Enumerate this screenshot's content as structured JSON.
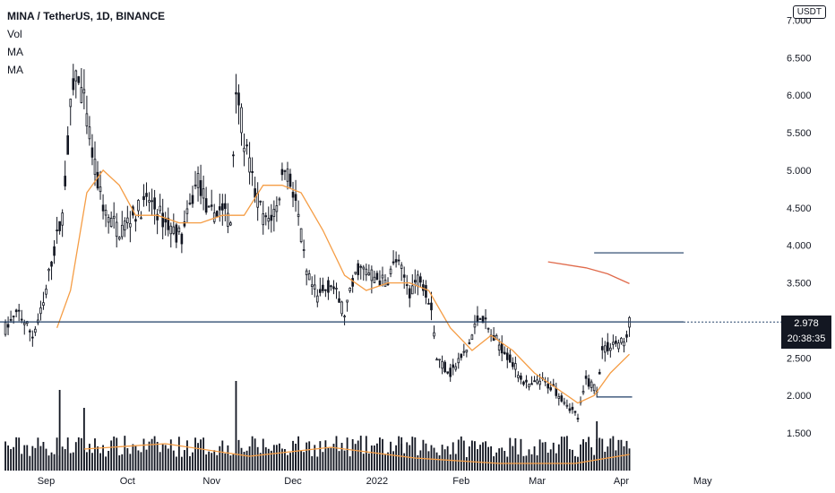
{
  "legend": {
    "symbol": "MINA / TetherUS, 1D, BINANCE",
    "lines": [
      "Vol",
      "MA",
      "MA"
    ]
  },
  "currency": "USDT",
  "price_tag": {
    "price": "2.978",
    "countdown": "20:38:35"
  },
  "colors": {
    "candle": "#131722",
    "ma_short": "#f59d45",
    "ma_long": "#e06a4b",
    "hline": "#1f3e66",
    "volume": "#131722"
  },
  "chart_data": {
    "type": "candlestick",
    "y_ticks": [
      "7.000",
      "6.500",
      "6.000",
      "5.500",
      "5.000",
      "4.500",
      "4.000",
      "3.500",
      "3.000",
      "2.500",
      "2.000",
      "1.500"
    ],
    "y_range": [
      1.0,
      7.1
    ],
    "x_ticks": [
      "Sep",
      "Oct",
      "Nov",
      "Dec",
      "2022",
      "Feb",
      "Mar",
      "Apr",
      "May"
    ],
    "x_range": [
      "2021-08-15",
      "2022-05-26"
    ],
    "price_series": [
      [
        "2021-08-17",
        2.9
      ],
      [
        "2021-08-22",
        3.1
      ],
      [
        "2021-08-27",
        2.8
      ],
      [
        "2021-08-31",
        3.2
      ],
      [
        "2021-09-03",
        3.8
      ],
      [
        "2021-09-07",
        4.4
      ],
      [
        "2021-09-10",
        5.8
      ],
      [
        "2021-09-12",
        6.3
      ],
      [
        "2021-09-15",
        5.9
      ],
      [
        "2021-09-19",
        5.0
      ],
      [
        "2021-09-23",
        4.4
      ],
      [
        "2021-09-28",
        4.2
      ],
      [
        "2021-10-03",
        4.4
      ],
      [
        "2021-10-09",
        4.6
      ],
      [
        "2021-10-15",
        4.3
      ],
      [
        "2021-10-21",
        4.1
      ],
      [
        "2021-10-27",
        4.9
      ],
      [
        "2021-10-31",
        4.4
      ],
      [
        "2021-11-05",
        4.5
      ],
      [
        "2021-11-08",
        4.3
      ],
      [
        "2021-11-10",
        6.2
      ],
      [
        "2021-11-13",
        5.4
      ],
      [
        "2021-11-17",
        4.7
      ],
      [
        "2021-11-21",
        4.3
      ],
      [
        "2021-11-25",
        4.5
      ],
      [
        "2021-11-28",
        5.1
      ],
      [
        "2021-12-02",
        4.6
      ],
      [
        "2021-12-06",
        3.6
      ],
      [
        "2021-12-10",
        3.3
      ],
      [
        "2021-12-15",
        3.5
      ],
      [
        "2021-12-20",
        3.1
      ],
      [
        "2021-12-25",
        3.7
      ],
      [
        "2021-12-30",
        3.6
      ],
      [
        "2022-01-04",
        3.5
      ],
      [
        "2022-01-08",
        3.8
      ],
      [
        "2022-01-13",
        3.4
      ],
      [
        "2022-01-17",
        3.6
      ],
      [
        "2022-01-21",
        3.2
      ],
      [
        "2022-01-23",
        2.5
      ],
      [
        "2022-01-28",
        2.3
      ],
      [
        "2022-02-03",
        2.6
      ],
      [
        "2022-02-08",
        3.1
      ],
      [
        "2022-02-12",
        2.8
      ],
      [
        "2022-02-17",
        2.6
      ],
      [
        "2022-02-22",
        2.3
      ],
      [
        "2022-02-26",
        2.1
      ],
      [
        "2022-03-02",
        2.2
      ],
      [
        "2022-03-07",
        2.1
      ],
      [
        "2022-03-12",
        1.9
      ],
      [
        "2022-03-16",
        1.7
      ],
      [
        "2022-03-19",
        2.2
      ],
      [
        "2022-03-23",
        2.1
      ],
      [
        "2022-03-25",
        2.6
      ],
      [
        "2022-03-29",
        2.7
      ],
      [
        "2022-04-02",
        2.7
      ],
      [
        "2022-04-04",
        2.98
      ]
    ],
    "ma_short": [
      [
        "2021-09-05",
        2.9
      ],
      [
        "2021-09-10",
        3.4
      ],
      [
        "2021-09-16",
        4.7
      ],
      [
        "2021-09-22",
        5.0
      ],
      [
        "2021-09-28",
        4.8
      ],
      [
        "2021-10-04",
        4.4
      ],
      [
        "2021-10-12",
        4.4
      ],
      [
        "2021-10-20",
        4.3
      ],
      [
        "2021-10-28",
        4.3
      ],
      [
        "2021-11-05",
        4.4
      ],
      [
        "2021-11-13",
        4.4
      ],
      [
        "2021-11-20",
        4.8
      ],
      [
        "2021-11-27",
        4.8
      ],
      [
        "2021-12-04",
        4.7
      ],
      [
        "2021-12-12",
        4.2
      ],
      [
        "2021-12-20",
        3.6
      ],
      [
        "2021-12-28",
        3.4
      ],
      [
        "2022-01-05",
        3.5
      ],
      [
        "2022-01-13",
        3.5
      ],
      [
        "2022-01-20",
        3.4
      ],
      [
        "2022-01-28",
        2.9
      ],
      [
        "2022-02-05",
        2.6
      ],
      [
        "2022-02-12",
        2.8
      ],
      [
        "2022-02-20",
        2.6
      ],
      [
        "2022-02-28",
        2.3
      ],
      [
        "2022-03-08",
        2.1
      ],
      [
        "2022-03-16",
        1.9
      ],
      [
        "2022-03-22",
        2.0
      ],
      [
        "2022-03-28",
        2.3
      ],
      [
        "2022-04-04",
        2.55
      ]
    ],
    "ma_long": [
      [
        "2022-03-05",
        3.78
      ],
      [
        "2022-03-19",
        3.7
      ],
      [
        "2022-03-27",
        3.62
      ],
      [
        "2022-04-04",
        3.49
      ]
    ],
    "horizontal_lines": [
      {
        "price": 2.98,
        "from": "2021-08-15",
        "to": "2022-04-24"
      },
      {
        "price": 3.9,
        "from": "2022-03-22",
        "to": "2022-04-24"
      },
      {
        "price": 1.98,
        "from": "2022-03-23",
        "to": "2022-04-05"
      }
    ],
    "volume_spikes": [
      [
        "2021-09-06",
        0.9
      ],
      [
        "2021-09-15",
        0.7
      ],
      [
        "2021-11-10",
        1.0
      ],
      [
        "2021-12-02",
        0.3
      ],
      [
        "2022-01-10",
        0.3
      ],
      [
        "2022-03-18",
        0.35
      ],
      [
        "2022-03-23",
        0.55
      ]
    ],
    "volume_ma": [
      [
        "2021-09-15",
        0.12
      ],
      [
        "2021-10-15",
        0.15
      ],
      [
        "2021-11-15",
        0.08
      ],
      [
        "2021-12-15",
        0.13
      ],
      [
        "2022-01-15",
        0.07
      ],
      [
        "2022-02-15",
        0.04
      ],
      [
        "2022-03-15",
        0.04
      ],
      [
        "2022-04-04",
        0.09
      ]
    ]
  }
}
